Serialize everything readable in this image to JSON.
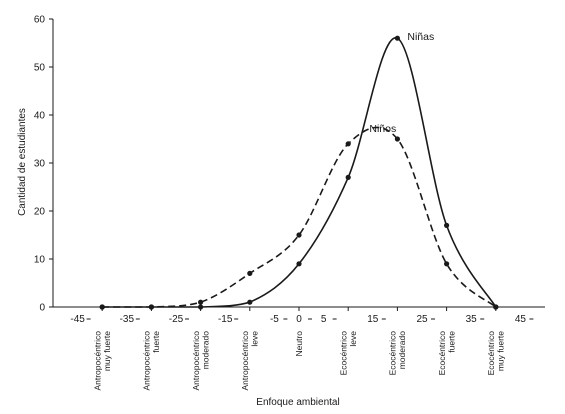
{
  "chart_data": {
    "type": "line",
    "xlabel": "Enfoque ambiental",
    "ylabel": "Cantidad de estudiantes",
    "xlim": [
      -50,
      50
    ],
    "ylim": [
      0,
      60
    ],
    "x_ticks": [
      "-45",
      "-35",
      "-25",
      "-15",
      "-5",
      "0",
      "5",
      "15",
      "25",
      "35",
      "45"
    ],
    "x_tick_values": [
      -45,
      -35,
      -25,
      -15,
      -5,
      0,
      5,
      15,
      25,
      35,
      45
    ],
    "y_ticks": [
      "0",
      "10",
      "20",
      "30",
      "40",
      "50",
      "60"
    ],
    "y_tick_values": [
      0,
      10,
      20,
      30,
      40,
      50,
      60
    ],
    "categories": [
      {
        "x": -40,
        "lines": [
          "Antropocéntrico",
          "muy fuerte"
        ]
      },
      {
        "x": -30,
        "lines": [
          "Antropocéntrico",
          "fuerte"
        ]
      },
      {
        "x": -20,
        "lines": [
          "Antropocéntrico",
          "moderado"
        ]
      },
      {
        "x": -10,
        "lines": [
          "Antropocéntrico",
          "leve"
        ]
      },
      {
        "x": 0,
        "lines": [
          "Neutro"
        ]
      },
      {
        "x": 10,
        "lines": [
          "Ecocéntrico",
          "leve"
        ]
      },
      {
        "x": 20,
        "lines": [
          "Ecocéntrico",
          "moderado"
        ]
      },
      {
        "x": 30,
        "lines": [
          "Ecocéntrico",
          "fuerte"
        ]
      },
      {
        "x": 40,
        "lines": [
          "Ecocéntrico",
          "muy fuerte"
        ]
      }
    ],
    "series": [
      {
        "name": "Niñas",
        "style": "solid",
        "x": [
          -40,
          -30,
          -20,
          -10,
          0,
          10,
          20,
          30,
          40
        ],
        "y": [
          0,
          0,
          0,
          1,
          9,
          27,
          56,
          17,
          0
        ]
      },
      {
        "name": "Niños",
        "style": "dashed",
        "x": [
          -40,
          -30,
          -20,
          -10,
          0,
          10,
          20,
          30,
          40
        ],
        "y": [
          0,
          0,
          1,
          7,
          15,
          34,
          35,
          9,
          0
        ]
      }
    ],
    "grid": false,
    "legend": "inline labels near curve peaks",
    "color": "#1a1a1a"
  }
}
